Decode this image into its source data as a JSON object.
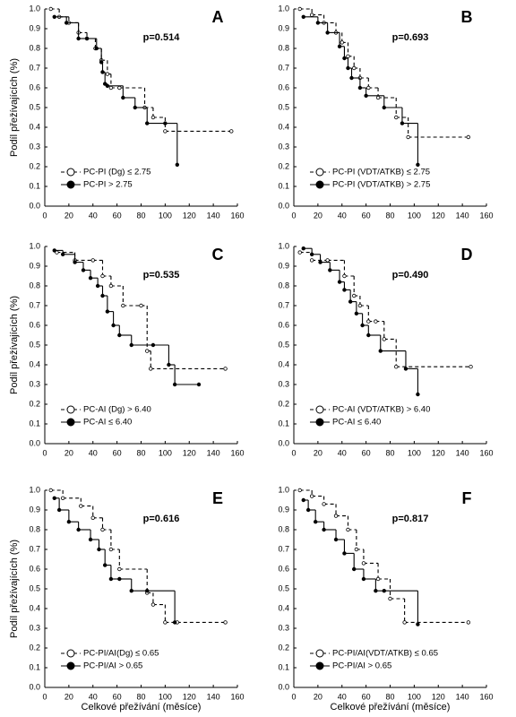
{
  "chart_data": [
    {
      "type": "line",
      "title": "A",
      "annotation": "p=0.514",
      "ylabel": "Podíl přežívajících (%)",
      "xlim": [
        0,
        160
      ],
      "xticks": [
        0,
        20,
        40,
        60,
        80,
        100,
        120,
        140,
        160
      ],
      "ylim": [
        0,
        1
      ],
      "yticks": [
        {
          "value": 0,
          "label": "0.0"
        },
        0.1,
        0.2,
        0.3,
        0.4,
        0.5,
        0.6,
        0.7,
        0.8,
        0.9,
        {
          "value": 1,
          "label": "1.0"
        }
      ],
      "series": [
        {
          "name": "PC-PI (Dg) ≤ 2.75",
          "color": "#000000",
          "style": "dashed",
          "marker": "open",
          "x": [
            5,
            12,
            20,
            28,
            35,
            42,
            47,
            52,
            55,
            62,
            83,
            90,
            100,
            155
          ],
          "values": [
            1.0,
            0.96,
            0.93,
            0.88,
            0.85,
            0.8,
            0.74,
            0.67,
            0.6,
            0.6,
            0.5,
            0.45,
            0.38,
            0.38
          ]
        },
        {
          "name": "PC-PI > 2.75",
          "color": "#000000",
          "style": "solid",
          "marker": "filled",
          "x": [
            8,
            18,
            28,
            35,
            43,
            47,
            48,
            50,
            52,
            65,
            75,
            85,
            100,
            110
          ],
          "values": [
            0.96,
            0.93,
            0.85,
            0.85,
            0.8,
            0.73,
            0.68,
            0.62,
            0.61,
            0.55,
            0.5,
            0.42,
            0.42,
            0.21
          ]
        }
      ]
    },
    {
      "type": "line",
      "title": "B",
      "annotation": "p=0.693",
      "xlim": [
        0,
        160
      ],
      "xticks": [
        0,
        20,
        40,
        60,
        80,
        100,
        120,
        140,
        160
      ],
      "ylim": [
        0,
        1
      ],
      "yticks": [
        {
          "value": 0,
          "label": "0.0"
        },
        0.1,
        0.2,
        0.3,
        0.4,
        0.5,
        0.6,
        0.7,
        0.8,
        0.9,
        {
          "value": 1,
          "label": "1.0"
        }
      ],
      "series": [
        {
          "name": "PC-PI (VDT/ATKB) ≤ 2.75",
          "color": "#000000",
          "style": "dashed",
          "marker": "open",
          "x": [
            5,
            15,
            25,
            35,
            40,
            45,
            50,
            55,
            62,
            70,
            85,
            95,
            145
          ],
          "values": [
            1.0,
            0.97,
            0.93,
            0.88,
            0.83,
            0.76,
            0.7,
            0.65,
            0.6,
            0.55,
            0.45,
            0.35,
            0.35
          ]
        },
        {
          "name": "PC-PI (VDT/ATKB) > 2.75",
          "color": "#000000",
          "style": "solid",
          "marker": "filled",
          "x": [
            8,
            20,
            28,
            38,
            42,
            45,
            48,
            55,
            60,
            75,
            90,
            103
          ],
          "values": [
            0.96,
            0.93,
            0.88,
            0.81,
            0.75,
            0.7,
            0.65,
            0.6,
            0.56,
            0.5,
            0.42,
            0.21
          ]
        }
      ]
    },
    {
      "type": "line",
      "title": "C",
      "annotation": "p=0.535",
      "ylabel": "Podíl přežívajících (%)",
      "xlim": [
        0,
        160
      ],
      "xticks": [
        0,
        20,
        40,
        60,
        80,
        100,
        120,
        140,
        160
      ],
      "ylim": [
        0,
        1
      ],
      "yticks": [
        {
          "value": 0,
          "label": "0.0"
        },
        0.1,
        0.2,
        0.3,
        0.4,
        0.5,
        0.6,
        0.7,
        0.8,
        0.9,
        {
          "value": 1,
          "label": "1.0"
        }
      ],
      "series": [
        {
          "name": "PC-AI (Dg) > 6.40",
          "color": "#000000",
          "style": "dashed",
          "marker": "open",
          "x": [
            10,
            25,
            40,
            48,
            55,
            65,
            80,
            85,
            88,
            150
          ],
          "values": [
            0.97,
            0.93,
            0.93,
            0.85,
            0.8,
            0.7,
            0.7,
            0.47,
            0.38,
            0.38
          ]
        },
        {
          "name": "PC-AI ≤ 6.40",
          "color": "#000000",
          "style": "solid",
          "marker": "filled",
          "x": [
            8,
            15,
            25,
            32,
            38,
            44,
            48,
            52,
            57,
            62,
            72,
            90,
            103,
            108,
            128
          ],
          "values": [
            0.98,
            0.96,
            0.92,
            0.88,
            0.84,
            0.8,
            0.75,
            0.67,
            0.6,
            0.55,
            0.5,
            0.5,
            0.4,
            0.3,
            0.3
          ]
        }
      ]
    },
    {
      "type": "line",
      "title": "D",
      "annotation": "p=0.490",
      "xlim": [
        0,
        160
      ],
      "xticks": [
        0,
        20,
        40,
        60,
        80,
        100,
        120,
        140,
        160
      ],
      "ylim": [
        0,
        1
      ],
      "yticks": [
        {
          "value": 0,
          "label": "0.0"
        },
        0.1,
        0.2,
        0.3,
        0.4,
        0.5,
        0.6,
        0.7,
        0.8,
        0.9,
        {
          "value": 1,
          "label": "1.0"
        }
      ],
      "series": [
        {
          "name": "PC-AI (VDT/ATKB) > 6.40",
          "color": "#000000",
          "style": "dashed",
          "marker": "open",
          "x": [
            5,
            15,
            28,
            42,
            50,
            55,
            62,
            68,
            75,
            85,
            147
          ],
          "values": [
            0.97,
            0.93,
            0.93,
            0.85,
            0.75,
            0.7,
            0.62,
            0.62,
            0.53,
            0.39,
            0.39
          ]
        },
        {
          "name": "PC-AI ≤ 6.40",
          "color": "#000000",
          "style": "solid",
          "marker": "filled",
          "x": [
            8,
            15,
            22,
            30,
            38,
            42,
            47,
            52,
            57,
            62,
            72,
            93,
            103
          ],
          "values": [
            0.99,
            0.96,
            0.92,
            0.88,
            0.82,
            0.78,
            0.72,
            0.66,
            0.6,
            0.55,
            0.47,
            0.38,
            0.25
          ]
        }
      ]
    },
    {
      "type": "line",
      "title": "E",
      "annotation": "p=0.616",
      "ylabel": "Podíl přežívajících (%)",
      "xlabel": "Celkové přežívání (měsíce)",
      "xlim": [
        0,
        160
      ],
      "xticks": [
        0,
        20,
        40,
        60,
        80,
        100,
        120,
        140,
        160
      ],
      "ylim": [
        0,
        1
      ],
      "yticks": [
        {
          "value": 0,
          "label": "0.0"
        },
        0.1,
        0.2,
        0.3,
        0.4,
        0.5,
        0.6,
        0.7,
        0.8,
        0.9,
        {
          "value": 1,
          "label": "1.0"
        }
      ],
      "series": [
        {
          "name": "PC-PI/AI(Dg) ≤ 0.65",
          "color": "#000000",
          "style": "dashed",
          "marker": "open",
          "x": [
            5,
            15,
            30,
            40,
            48,
            55,
            62,
            85,
            90,
            100,
            110,
            150
          ],
          "values": [
            1.0,
            0.96,
            0.92,
            0.86,
            0.8,
            0.7,
            0.6,
            0.48,
            0.42,
            0.33,
            0.33,
            0.33
          ]
        },
        {
          "name": "PC-PI/AI > 0.65",
          "color": "#000000",
          "style": "solid",
          "marker": "filled",
          "x": [
            8,
            12,
            20,
            28,
            38,
            45,
            50,
            55,
            62,
            72,
            85,
            108
          ],
          "values": [
            0.96,
            0.9,
            0.84,
            0.8,
            0.75,
            0.7,
            0.62,
            0.55,
            0.55,
            0.49,
            0.49,
            0.33
          ]
        }
      ]
    },
    {
      "type": "line",
      "title": "F",
      "annotation": "p=0.817",
      "xlabel": "Celkové přežívání (měsíce)",
      "xlim": [
        0,
        160
      ],
      "xticks": [
        0,
        20,
        40,
        60,
        80,
        100,
        120,
        140,
        160
      ],
      "ylim": [
        0,
        1
      ],
      "yticks": [
        {
          "value": 0,
          "label": "0.0"
        },
        0.1,
        0.2,
        0.3,
        0.4,
        0.5,
        0.6,
        0.7,
        0.8,
        0.9,
        {
          "value": 1,
          "label": "1.0"
        }
      ],
      "series": [
        {
          "name": "PC-PI/AI(VDT/ATKB) ≤ 0.65",
          "color": "#000000",
          "style": "dashed",
          "marker": "open",
          "x": [
            5,
            15,
            25,
            35,
            45,
            52,
            58,
            70,
            80,
            92,
            145
          ],
          "values": [
            1.0,
            0.97,
            0.93,
            0.87,
            0.8,
            0.7,
            0.63,
            0.55,
            0.45,
            0.33,
            0.33
          ]
        },
        {
          "name": "PC-PI/AI > 0.65",
          "color": "#000000",
          "style": "solid",
          "marker": "filled",
          "x": [
            8,
            12,
            18,
            25,
            35,
            42,
            50,
            58,
            68,
            75,
            103
          ],
          "values": [
            0.95,
            0.9,
            0.84,
            0.8,
            0.75,
            0.68,
            0.6,
            0.55,
            0.49,
            0.49,
            0.32
          ]
        }
      ]
    }
  ]
}
